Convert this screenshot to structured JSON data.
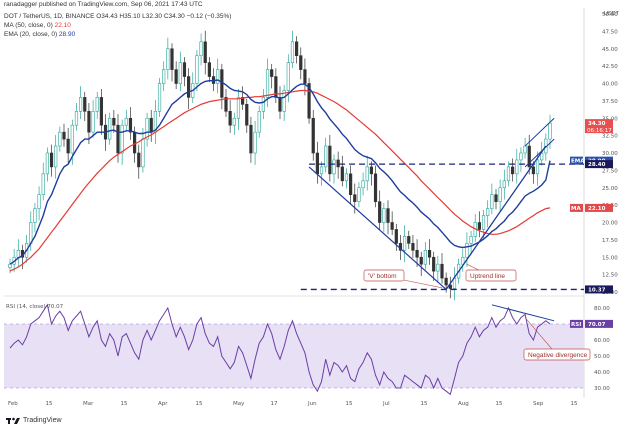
{
  "header": {
    "line1": "ranadagger published on TradingView.com, Sep 06, 2021 17:43 UTC",
    "symbol": "DOT / TetherUS, 1D, BINANCE",
    "ohlc": "O34.43  H35.10  L32.30  C34.30  −0.12 (−0.35%)",
    "ma_label": "MA (50, close, 0)",
    "ma_value": "22.10",
    "ema_label": "EMA (20, close, 0)",
    "ema_value": "28.90",
    "currency": "USDT"
  },
  "price_axis": {
    "ticks": [
      "50.00",
      "47.50",
      "45.00",
      "42.50",
      "40.00",
      "37.50",
      "35.00",
      "32.50",
      "30.00",
      "27.50",
      "25.00",
      "22.50",
      "20.00",
      "17.50",
      "15.00",
      "12.50",
      "10.00"
    ],
    "tags": [
      {
        "label": "",
        "value": "34.30",
        "sub": "06:16:17",
        "color": "#e84f4f"
      },
      {
        "label": "EMA",
        "value": "28.90",
        "color": "#2b4fa8"
      },
      {
        "label": "",
        "value": "28.40",
        "color": "#1a1a5a"
      },
      {
        "label": "MA",
        "value": "22.10",
        "color": "#e04a4a"
      },
      {
        "label": "",
        "value": "10.37",
        "color": "#1a1a5a"
      }
    ]
  },
  "rsi": {
    "label": "RSI (14, close)",
    "value": "70.07",
    "tag_label": "RSI",
    "tag_value": "70.07",
    "ticks": [
      "80.00",
      "70.00",
      "60.00",
      "50.00",
      "40.00",
      "30.00"
    ]
  },
  "time_axis": [
    "Feb",
    "15",
    "Mar",
    "15",
    "Apr",
    "15",
    "May",
    "17",
    "Jun",
    "15",
    "Jul",
    "15",
    "Aug",
    "15",
    "Sep",
    "15"
  ],
  "annotations": {
    "v_bottom": "'V' bottom",
    "uptrend": "Uptrend line",
    "neg_div": "Negative divergence"
  },
  "footer": {
    "brand": "TradingView"
  },
  "colors": {
    "up": "#26a69a",
    "down": "#333333",
    "ema": "#1e3d9c",
    "ma": "#e53935",
    "rsi": "#6a3fa6",
    "rsi_band": "#e8e0f5",
    "dashed": "#1a237e"
  },
  "chart_data": {
    "type": "candlestick",
    "title": "DOT / TetherUS, 1D, BINANCE",
    "ylim": [
      10,
      50
    ],
    "rsi_ylim": [
      25,
      85
    ],
    "levels": [
      28.4,
      10.37
    ],
    "closes": [
      14,
      15,
      16,
      15,
      17,
      20,
      22,
      24,
      27,
      30,
      28,
      31,
      33,
      32,
      30,
      34,
      36,
      38,
      36,
      33,
      36,
      38,
      34,
      32,
      35,
      34,
      30,
      34,
      35,
      33,
      30,
      28,
      32,
      35,
      33,
      36,
      40,
      42,
      45,
      42,
      40,
      43,
      41,
      38,
      40,
      44,
      46,
      43,
      41,
      40,
      42,
      38,
      36,
      34,
      35,
      38,
      37,
      34,
      30,
      33,
      36,
      38,
      42,
      41,
      38,
      36,
      39,
      43,
      46,
      44,
      42,
      40,
      35,
      30,
      27,
      28,
      31,
      27,
      29,
      28,
      26,
      27,
      24,
      23,
      25,
      26,
      28,
      27,
      23,
      20,
      22,
      20,
      19,
      17,
      16,
      18,
      17,
      16,
      15,
      14,
      16,
      15,
      13,
      14,
      12,
      11,
      10.5,
      12,
      14,
      15,
      17,
      18,
      20,
      19,
      21,
      22,
      24,
      23,
      25,
      26,
      28,
      27,
      29,
      30,
      31,
      28,
      27,
      29,
      30,
      32,
      34.3
    ],
    "ema20": [
      14,
      14.4,
      14.9,
      15.2,
      16,
      17,
      18,
      19.5,
      21,
      23,
      24,
      25.5,
      27,
      28,
      28.4,
      29.5,
      30.5,
      31.5,
      32,
      32,
      32.5,
      33,
      33,
      33,
      33.2,
      33.3,
      33,
      33,
      33.2,
      33.2,
      33,
      32.8,
      32.8,
      33,
      33,
      33.3,
      34,
      35,
      36,
      37,
      37.5,
      38,
      38.5,
      38.8,
      39,
      39.5,
      40,
      40.3,
      40.4,
      40.4,
      40.5,
      40.2,
      39.8,
      39.3,
      39,
      38.9,
      38.8,
      38.4,
      37.7,
      37.3,
      37.2,
      37.3,
      37.8,
      38.1,
      38.1,
      37.9,
      38,
      38.5,
      39.1,
      39.6,
      39.9,
      39.9,
      39.4,
      38.5,
      37.4,
      36.5,
      35.8,
      34.9,
      34.2,
      33.5,
      32.7,
      32.1,
      31.3,
      30.5,
      30,
      29.6,
      29.4,
      29.2,
      28.6,
      27.8,
      27.3,
      26.7,
      26,
      25.2,
      24.4,
      23.9,
      23.3,
      22.8,
      22.2,
      21.5,
      21,
      20.5,
      19.8,
      19.3,
      18.6,
      17.9,
      17.2,
      16.7,
      16.5,
      16.4,
      16.5,
      16.6,
      16.9,
      17.2,
      17.6,
      18.1,
      18.7,
      19.1,
      19.7,
      20.2,
      21,
      21.5,
      22.2,
      23,
      23.8,
      24.2,
      24.5,
      24.9,
      25.4,
      26.1,
      28.9
    ],
    "ma50": [
      13,
      13.3,
      13.6,
      14,
      14.5,
      15,
      15.6,
      16.2,
      17,
      17.8,
      18.6,
      19.4,
      20.2,
      21,
      21.8,
      22.6,
      23.4,
      24.2,
      25,
      25.7,
      26.4,
      27.1,
      27.7,
      28.3,
      28.9,
      29.4,
      29.8,
      30.2,
      30.6,
      31,
      31.3,
      31.6,
      32,
      32.3,
      32.6,
      33,
      33.4,
      33.8,
      34.2,
      34.6,
      35,
      35.4,
      35.8,
      36.1,
      36.4,
      36.7,
      37,
      37.2,
      37.4,
      37.5,
      37.6,
      37.7,
      37.8,
      37.8,
      37.8,
      37.8,
      37.9,
      38,
      38,
      38.1,
      38.1,
      38.2,
      38.3,
      38.4,
      38.5,
      38.5,
      38.6,
      38.7,
      38.8,
      38.9,
      39,
      39,
      38.9,
      38.8,
      38.6,
      38.3,
      38,
      37.7,
      37.4,
      37,
      36.6,
      36.2,
      35.7,
      35.2,
      34.7,
      34.2,
      33.7,
      33.2,
      32.7,
      32.1,
      31.5,
      30.9,
      30.3,
      29.7,
      29.1,
      28.5,
      27.9,
      27.3,
      26.7,
      26,
      25.4,
      24.8,
      24.2,
      23.6,
      23,
      22.4,
      21.8,
      21.2,
      20.7,
      20.2,
      19.8,
      19.4,
      19.1,
      18.8,
      18.6,
      18.4,
      18.3,
      18.3,
      18.4,
      18.6,
      18.8,
      19.1,
      19.4,
      19.8,
      20.2,
      20.6,
      21,
      21.4,
      21.7,
      22,
      22.1
    ],
    "rsi": [
      55,
      58,
      60,
      57,
      62,
      70,
      72,
      74,
      78,
      82,
      70,
      75,
      78,
      74,
      66,
      72,
      75,
      78,
      70,
      62,
      68,
      72,
      60,
      56,
      64,
      60,
      50,
      62,
      64,
      58,
      52,
      48,
      60,
      66,
      60,
      66,
      72,
      76,
      80,
      70,
      62,
      68,
      62,
      54,
      60,
      70,
      74,
      64,
      58,
      56,
      62,
      50,
      46,
      42,
      46,
      56,
      52,
      44,
      36,
      48,
      58,
      62,
      70,
      64,
      54,
      48,
      56,
      66,
      72,
      64,
      58,
      52,
      40,
      32,
      28,
      34,
      48,
      38,
      46,
      44,
      40,
      44,
      36,
      34,
      42,
      46,
      52,
      48,
      38,
      32,
      40,
      36,
      34,
      30,
      30,
      38,
      36,
      34,
      32,
      30,
      38,
      36,
      30,
      36,
      30,
      28,
      26,
      36,
      46,
      50,
      58,
      62,
      68,
      62,
      66,
      68,
      74,
      68,
      72,
      74,
      80,
      74,
      70,
      74,
      76,
      64,
      60,
      68,
      70,
      72,
      70.07
    ]
  }
}
